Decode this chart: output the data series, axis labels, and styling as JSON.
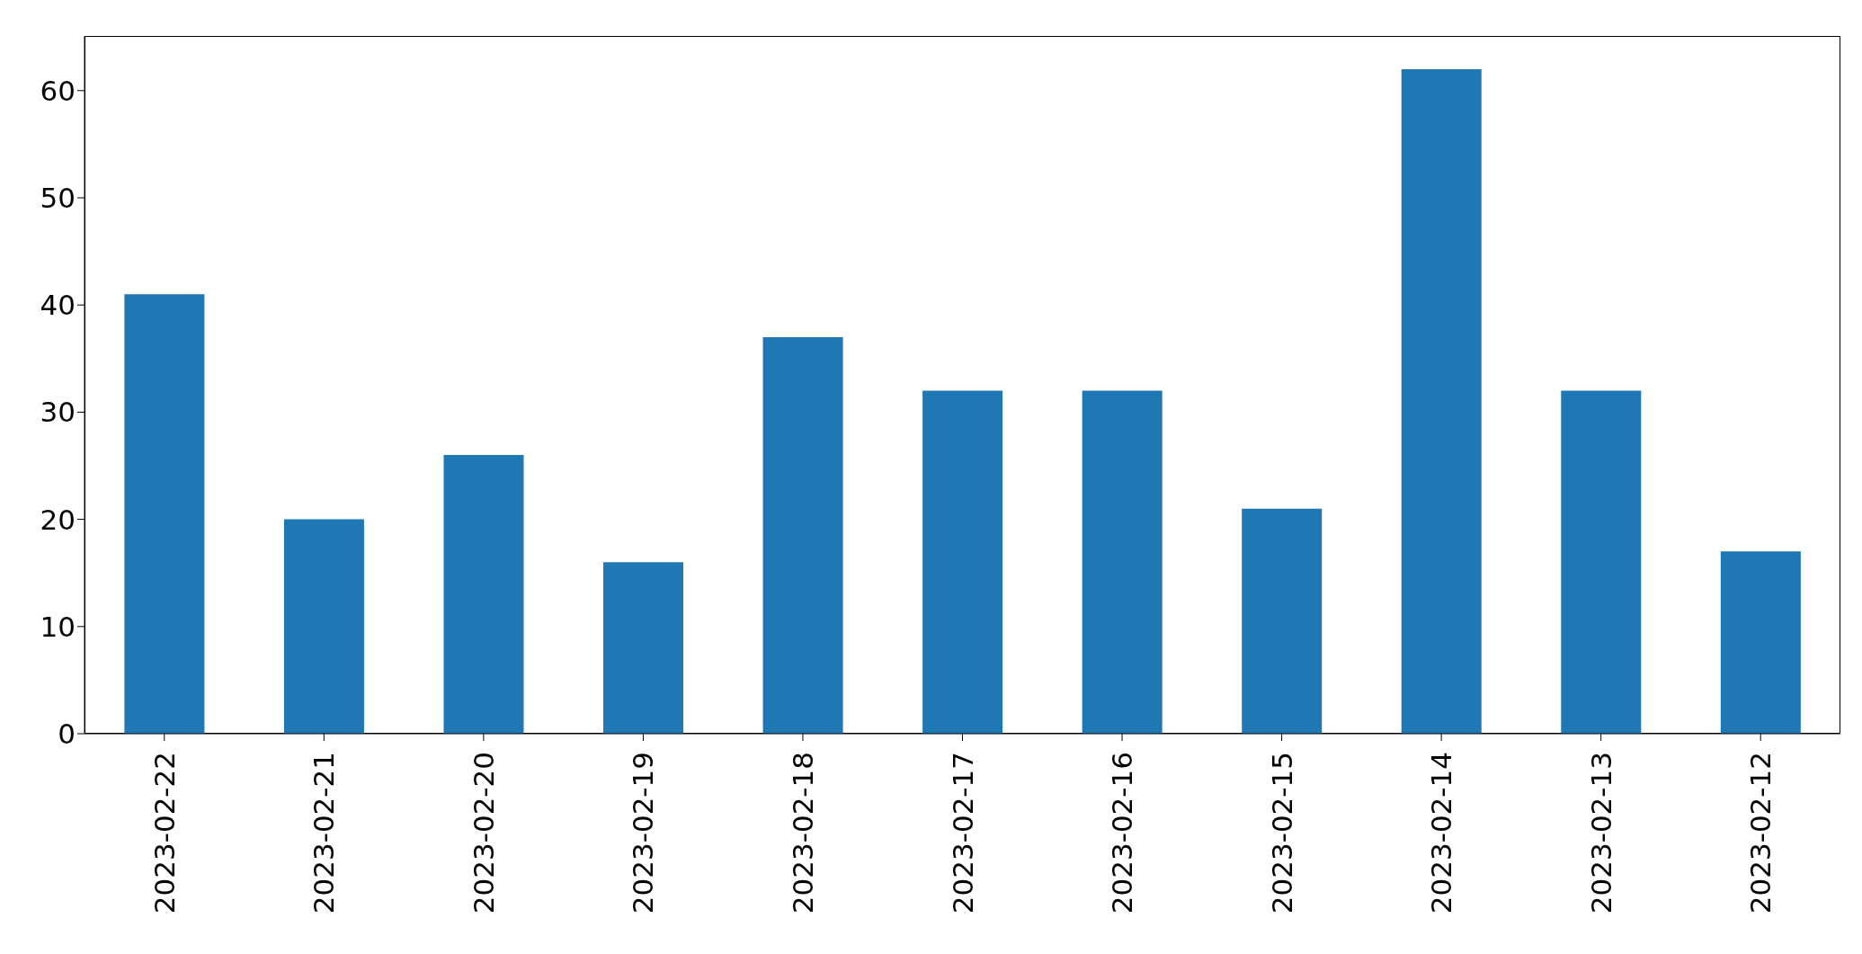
{
  "chart_data": {
    "type": "bar",
    "categories": [
      "2023-02-22",
      "2023-02-21",
      "2023-02-20",
      "2023-02-19",
      "2023-02-18",
      "2023-02-17",
      "2023-02-16",
      "2023-02-15",
      "2023-02-14",
      "2023-02-13",
      "2023-02-12"
    ],
    "values": [
      41,
      20,
      26,
      16,
      37,
      32,
      32,
      21,
      62,
      32,
      17
    ],
    "color": "#1f77b4",
    "ylim": [
      0,
      65.1
    ],
    "yticks": [
      0,
      10,
      20,
      30,
      40,
      50,
      60
    ],
    "grid": false
  }
}
